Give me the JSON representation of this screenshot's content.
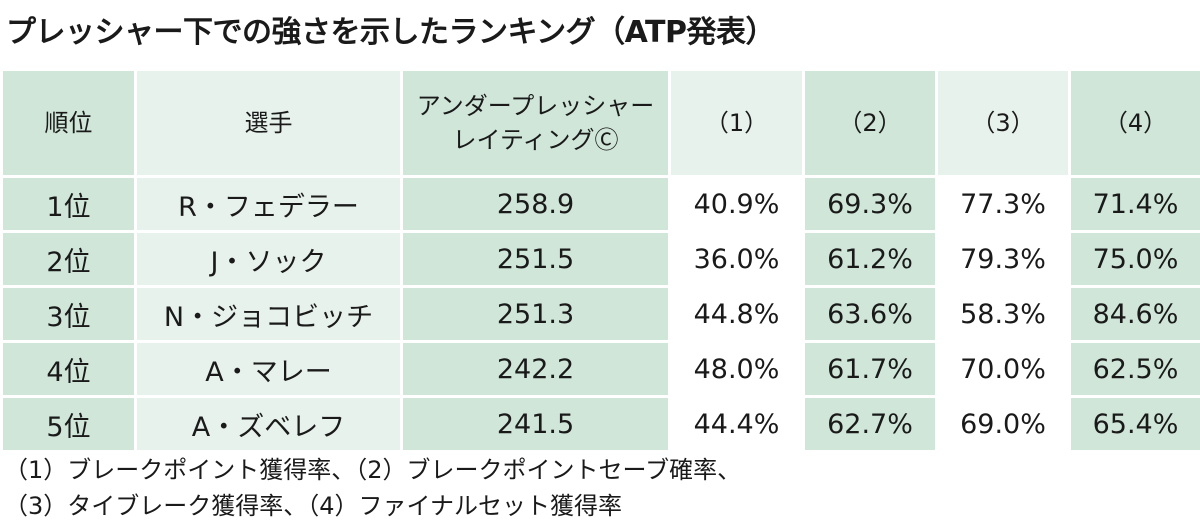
{
  "title": "プレッシャー下での強さを示したランキング（ATP発表）",
  "chart_data": {
    "type": "table",
    "title": "プレッシャー下での強さを示したランキング（ATP発表）",
    "columns": [
      "順位",
      "選手",
      "アンダープレッシャーレイティングⒸ",
      "（1）",
      "（2）",
      "（3）",
      "（4）"
    ],
    "header_lines": {
      "rating": [
        "アンダープレッシャー",
        "レイティングⒸ"
      ]
    },
    "rows": [
      [
        "1位",
        "R・フェデラー",
        "258.9",
        "40.9%",
        "69.3%",
        "77.3%",
        "71.4%"
      ],
      [
        "2位",
        "J・ソック",
        "251.5",
        "36.0%",
        "61.2%",
        "79.3%",
        "75.0%"
      ],
      [
        "3位",
        "N・ジョコビッチ",
        "251.3",
        "44.8%",
        "63.6%",
        "58.3%",
        "84.6%"
      ],
      [
        "4位",
        "A・マレー",
        "242.2",
        "48.0%",
        "61.7%",
        "70.0%",
        "62.5%"
      ],
      [
        "5位",
        "A・ズベレフ",
        "241.5",
        "44.4%",
        "62.7%",
        "69.0%",
        "65.4%"
      ]
    ],
    "notes": [
      "（1）ブレークポイント獲得率、（2）ブレークポイントセーブ確率、",
      "（3）タイブレーク獲得率、（4）ファイナルセット獲得率"
    ]
  },
  "colors": {
    "cell_dark": "#cfe6d9",
    "cell_light": "#e8f2ec",
    "cell_white": "#ffffff",
    "text": "#1a1a1a"
  }
}
